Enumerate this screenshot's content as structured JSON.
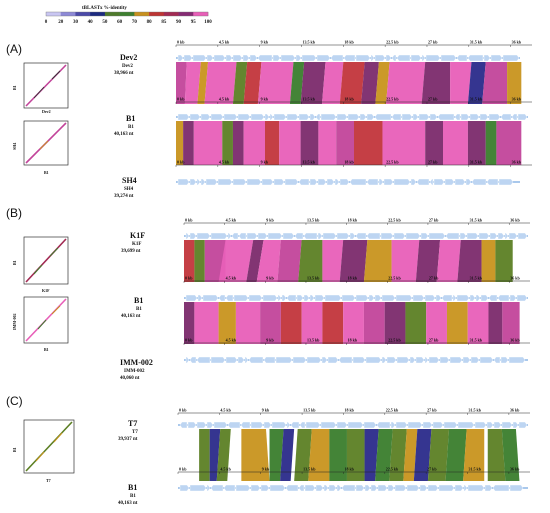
{
  "legend": {
    "title": "tBLASTx %-identity",
    "ticks": [
      "0",
      "20",
      "30",
      "40",
      "50",
      "60",
      "70",
      "80",
      "85",
      "90",
      "95",
      "100"
    ],
    "colors": [
      "#ffffff",
      "#c9c6f2",
      "#8d89d6",
      "#4b4aa8",
      "#1c2a80",
      "#4e7a2b",
      "#3d7f2f",
      "#c8911f",
      "#bd3533",
      "#a22a53",
      "#852a73",
      "#e85fb8"
    ]
  },
  "palette": {
    "map_blue": "#a9c8ec",
    "arrow_blue": "#bdd5f2",
    "pink": "#e85fb8",
    "magenta": "#c2449a",
    "red": "#c2353b",
    "purple": "#7b2a6c",
    "olive": "#5c7f24",
    "mustard": "#c8931e",
    "navy": "#2a2a8a",
    "green": "#3a7d2c"
  },
  "panels": [
    {
      "letter": "(A)",
      "genomes": [
        {
          "name": "Dev2",
          "sub": "Dev2",
          "length": "38,966 nt"
        },
        {
          "name": "B1",
          "sub": "B1",
          "length": "40,163 nt"
        },
        {
          "name": "SH4",
          "sub": "SH4",
          "length": "39,274 nt"
        }
      ],
      "dotplots": [
        {
          "y_label": "B1",
          "x_label": "Dev2"
        },
        {
          "y_label": "SH4",
          "x_label": "B1"
        }
      ],
      "ticks": [
        "0 kb",
        "4.5 kb",
        "9 kb",
        "13.5 kb",
        "18 kb",
        "22.5 kb",
        "27 kb",
        "31.5 kb",
        "36 kb"
      ]
    },
    {
      "letter": "(B)",
      "genomes": [
        {
          "name": "K1F",
          "sub": "K1F",
          "length": "39,699 nt"
        },
        {
          "name": "B1",
          "sub": "B1",
          "length": "40,163 nt"
        },
        {
          "name": "IMM-002",
          "sub": "IMM-002",
          "length": "40,060 nt"
        }
      ],
      "dotplots": [
        {
          "y_label": "B1",
          "x_label": "K1F"
        },
        {
          "y_label": "IMM-002",
          "x_label": "B1"
        }
      ],
      "ticks": [
        "0 kb",
        "4.5 kb",
        "9 kb",
        "13.5 kb",
        "18 kb",
        "22.5 kb",
        "27 kb",
        "31.5 kb",
        "36 kb"
      ]
    },
    {
      "letter": "(C)",
      "genomes": [
        {
          "name": "T7",
          "sub": "T7",
          "length": "39,937 nt"
        },
        {
          "name": "B1",
          "sub": "B1",
          "length": "40,163 nt"
        }
      ],
      "dotplots": [
        {
          "y_label": "B1",
          "x_label": "T7"
        }
      ],
      "ticks": [
        "0 kb",
        "4.5 kb",
        "9 kb",
        "13.5 kb",
        "18 kb",
        "22.5 kb",
        "27 kb",
        "31.5 kb",
        "36 kb"
      ]
    }
  ]
}
